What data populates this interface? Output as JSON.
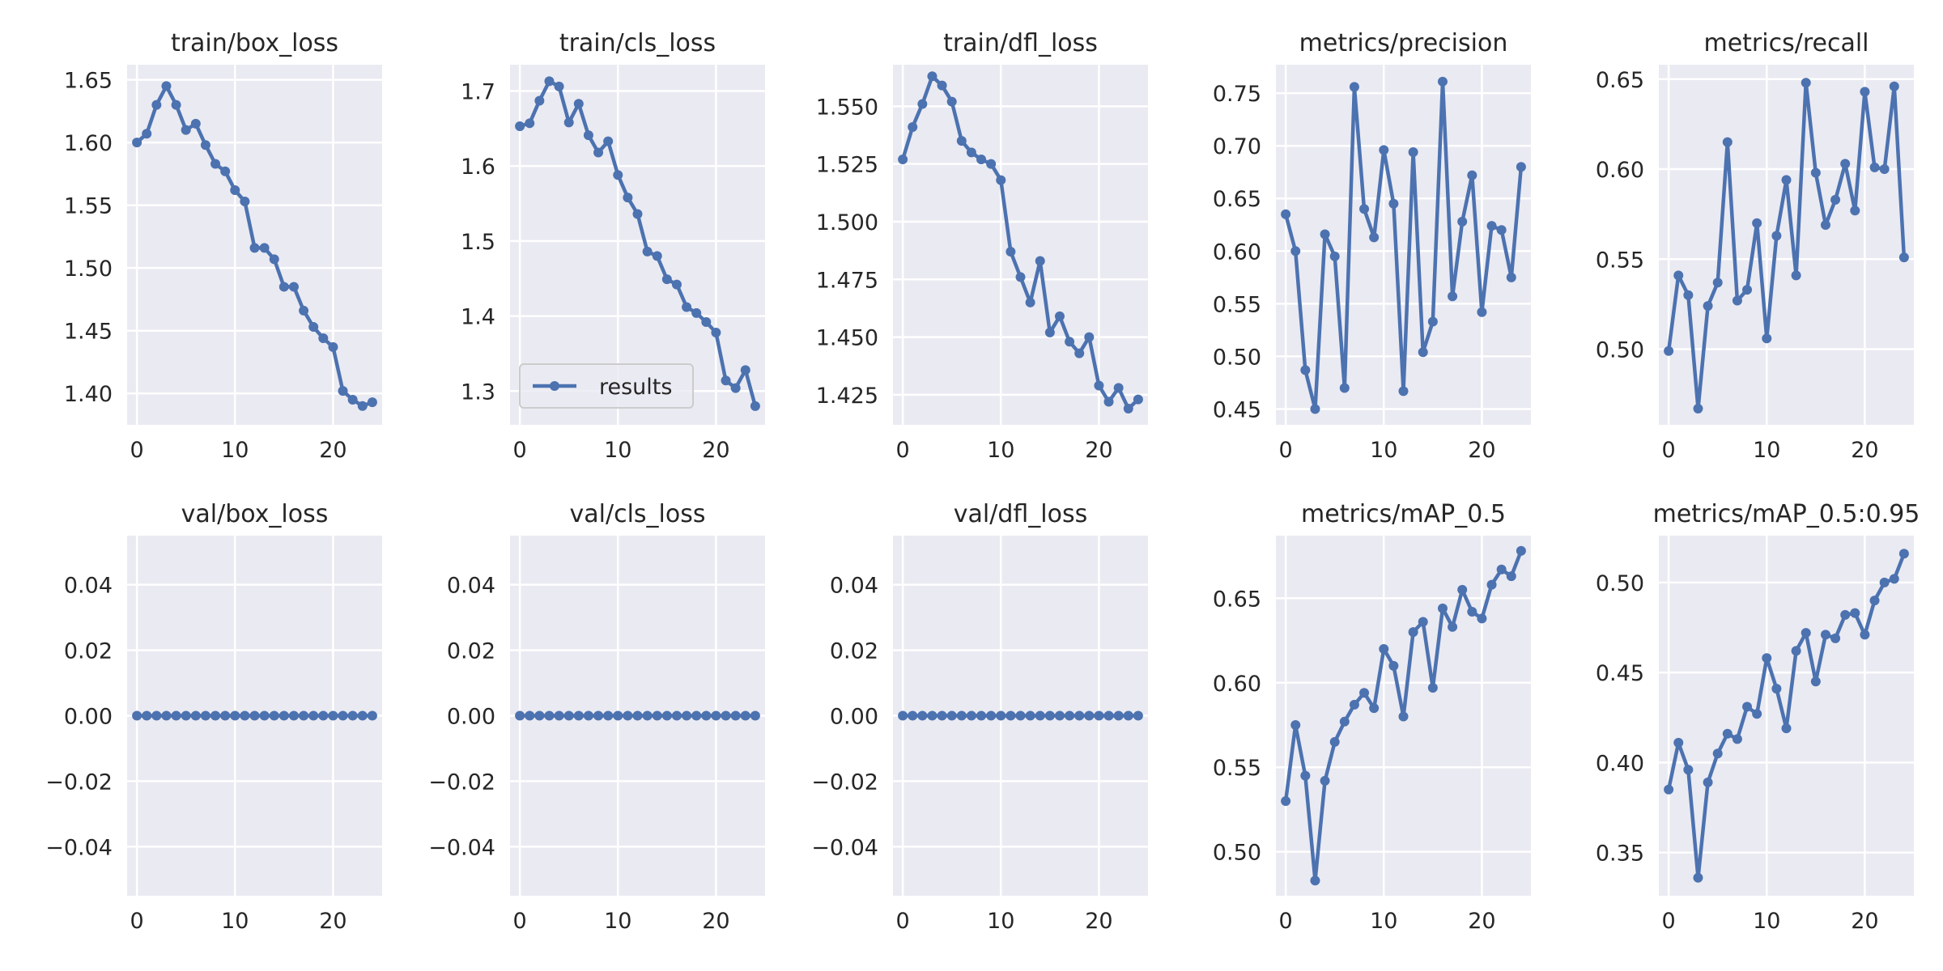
{
  "series_color": "#4c72b0",
  "background_color": "#eaeaf2",
  "grid_color": "#ffffff",
  "chart_data": [
    {
      "type": "line",
      "title": "train/box_loss",
      "xlim": [
        -1,
        25
      ],
      "ylim": [
        1.375,
        1.662
      ],
      "xticks": [
        0,
        10,
        20
      ],
      "yticks": [
        1.4,
        1.45,
        1.5,
        1.55,
        1.6,
        1.65
      ],
      "grid": true,
      "series": [
        {
          "name": "results",
          "x": [
            0,
            1,
            2,
            3,
            4,
            5,
            6,
            7,
            8,
            9,
            10,
            11,
            12,
            13,
            14,
            15,
            16,
            17,
            18,
            19,
            20,
            21,
            22,
            23,
            24
          ],
          "y": [
            1.6,
            1.607,
            1.63,
            1.645,
            1.63,
            1.61,
            1.615,
            1.598,
            1.583,
            1.577,
            1.562,
            1.553,
            1.516,
            1.516,
            1.507,
            1.485,
            1.485,
            1.466,
            1.453,
            1.444,
            1.437,
            1.402,
            1.395,
            1.39,
            1.393
          ]
        }
      ]
    },
    {
      "type": "line",
      "title": "train/cls_loss",
      "xlim": [
        -1,
        25
      ],
      "ylim": [
        1.255,
        1.735
      ],
      "xticks": [
        0,
        10,
        20
      ],
      "yticks": [
        1.3,
        1.4,
        1.5,
        1.6,
        1.7
      ],
      "grid": true,
      "legend": "lower left",
      "series": [
        {
          "name": "results",
          "x": [
            0,
            1,
            2,
            3,
            4,
            5,
            6,
            7,
            8,
            9,
            10,
            11,
            12,
            13,
            14,
            15,
            16,
            17,
            18,
            19,
            20,
            21,
            22,
            23,
            24
          ],
          "y": [
            1.653,
            1.657,
            1.687,
            1.713,
            1.706,
            1.658,
            1.683,
            1.641,
            1.618,
            1.633,
            1.588,
            1.558,
            1.536,
            1.486,
            1.48,
            1.449,
            1.442,
            1.412,
            1.404,
            1.392,
            1.378,
            1.314,
            1.304,
            1.328,
            1.28
          ]
        }
      ]
    },
    {
      "type": "line",
      "title": "train/dfl_loss",
      "xlim": [
        -1,
        25
      ],
      "ylim": [
        1.412,
        1.568
      ],
      "xticks": [
        0,
        10,
        20
      ],
      "yticks": [
        1.425,
        1.45,
        1.475,
        1.5,
        1.525,
        1.55
      ],
      "grid": true,
      "series": [
        {
          "name": "results",
          "x": [
            0,
            1,
            2,
            3,
            4,
            5,
            6,
            7,
            8,
            9,
            10,
            11,
            12,
            13,
            14,
            15,
            16,
            17,
            18,
            19,
            20,
            21,
            22,
            23,
            24
          ],
          "y": [
            1.527,
            1.541,
            1.551,
            1.563,
            1.559,
            1.552,
            1.535,
            1.53,
            1.527,
            1.525,
            1.518,
            1.487,
            1.476,
            1.465,
            1.483,
            1.452,
            1.459,
            1.448,
            1.443,
            1.45,
            1.429,
            1.422,
            1.428,
            1.419,
            1.423
          ]
        }
      ]
    },
    {
      "type": "line",
      "title": "metrics/precision",
      "xlim": [
        -1,
        25
      ],
      "ylim": [
        0.435,
        0.777
      ],
      "xticks": [
        0,
        10,
        20
      ],
      "yticks": [
        0.45,
        0.5,
        0.55,
        0.6,
        0.65,
        0.7,
        0.75
      ],
      "grid": true,
      "series": [
        {
          "name": "results",
          "x": [
            0,
            1,
            2,
            3,
            4,
            5,
            6,
            7,
            8,
            9,
            10,
            11,
            12,
            13,
            14,
            15,
            16,
            17,
            18,
            19,
            20,
            21,
            22,
            23,
            24
          ],
          "y": [
            0.635,
            0.6,
            0.487,
            0.45,
            0.616,
            0.595,
            0.47,
            0.756,
            0.64,
            0.613,
            0.696,
            0.645,
            0.467,
            0.694,
            0.504,
            0.533,
            0.761,
            0.557,
            0.628,
            0.672,
            0.542,
            0.624,
            0.62,
            0.575,
            0.68
          ]
        }
      ]
    },
    {
      "type": "line",
      "title": "metrics/recall",
      "xlim": [
        -1,
        25
      ],
      "ylim": [
        0.458,
        0.658
      ],
      "xticks": [
        0,
        10,
        20
      ],
      "yticks": [
        0.5,
        0.55,
        0.6,
        0.65
      ],
      "grid": true,
      "series": [
        {
          "name": "results",
          "x": [
            0,
            1,
            2,
            3,
            4,
            5,
            6,
            7,
            8,
            9,
            10,
            11,
            12,
            13,
            14,
            15,
            16,
            17,
            18,
            19,
            20,
            21,
            22,
            23,
            24
          ],
          "y": [
            0.499,
            0.541,
            0.53,
            0.467,
            0.524,
            0.537,
            0.615,
            0.527,
            0.533,
            0.57,
            0.506,
            0.563,
            0.594,
            0.541,
            0.648,
            0.598,
            0.569,
            0.583,
            0.603,
            0.577,
            0.643,
            0.601,
            0.6,
            0.646,
            0.551
          ]
        }
      ]
    },
    {
      "type": "line",
      "title": "val/box_loss",
      "xlim": [
        -1,
        25
      ],
      "ylim": [
        -0.055,
        0.055
      ],
      "xticks": [
        0,
        10,
        20
      ],
      "yticks": [
        -0.04,
        -0.02,
        0.0,
        0.02,
        0.04
      ],
      "grid": true,
      "series": [
        {
          "name": "results",
          "x": [
            0,
            1,
            2,
            3,
            4,
            5,
            6,
            7,
            8,
            9,
            10,
            11,
            12,
            13,
            14,
            15,
            16,
            17,
            18,
            19,
            20,
            21,
            22,
            23,
            24
          ],
          "y": [
            0,
            0,
            0,
            0,
            0,
            0,
            0,
            0,
            0,
            0,
            0,
            0,
            0,
            0,
            0,
            0,
            0,
            0,
            0,
            0,
            0,
            0,
            0,
            0,
            0
          ]
        }
      ]
    },
    {
      "type": "line",
      "title": "val/cls_loss",
      "xlim": [
        -1,
        25
      ],
      "ylim": [
        -0.055,
        0.055
      ],
      "xticks": [
        0,
        10,
        20
      ],
      "yticks": [
        -0.04,
        -0.02,
        0.0,
        0.02,
        0.04
      ],
      "grid": true,
      "series": [
        {
          "name": "results",
          "x": [
            0,
            1,
            2,
            3,
            4,
            5,
            6,
            7,
            8,
            9,
            10,
            11,
            12,
            13,
            14,
            15,
            16,
            17,
            18,
            19,
            20,
            21,
            22,
            23,
            24
          ],
          "y": [
            0,
            0,
            0,
            0,
            0,
            0,
            0,
            0,
            0,
            0,
            0,
            0,
            0,
            0,
            0,
            0,
            0,
            0,
            0,
            0,
            0,
            0,
            0,
            0,
            0
          ]
        }
      ]
    },
    {
      "type": "line",
      "title": "val/dfl_loss",
      "xlim": [
        -1,
        25
      ],
      "ylim": [
        -0.055,
        0.055
      ],
      "xticks": [
        0,
        10,
        20
      ],
      "yticks": [
        -0.04,
        -0.02,
        0.0,
        0.02,
        0.04
      ],
      "grid": true,
      "series": [
        {
          "name": "results",
          "x": [
            0,
            1,
            2,
            3,
            4,
            5,
            6,
            7,
            8,
            9,
            10,
            11,
            12,
            13,
            14,
            15,
            16,
            17,
            18,
            19,
            20,
            21,
            22,
            23,
            24
          ],
          "y": [
            0,
            0,
            0,
            0,
            0,
            0,
            0,
            0,
            0,
            0,
            0,
            0,
            0,
            0,
            0,
            0,
            0,
            0,
            0,
            0,
            0,
            0,
            0,
            0,
            0
          ]
        }
      ]
    },
    {
      "type": "line",
      "title": "metrics/mAP_0.5",
      "xlim": [
        -1,
        25
      ],
      "ylim": [
        0.474,
        0.687
      ],
      "xticks": [
        0,
        10,
        20
      ],
      "yticks": [
        0.5,
        0.55,
        0.6,
        0.65
      ],
      "grid": true,
      "series": [
        {
          "name": "results",
          "x": [
            0,
            1,
            2,
            3,
            4,
            5,
            6,
            7,
            8,
            9,
            10,
            11,
            12,
            13,
            14,
            15,
            16,
            17,
            18,
            19,
            20,
            21,
            22,
            23,
            24
          ],
          "y": [
            0.53,
            0.575,
            0.545,
            0.483,
            0.542,
            0.565,
            0.577,
            0.587,
            0.594,
            0.585,
            0.62,
            0.61,
            0.58,
            0.63,
            0.636,
            0.597,
            0.644,
            0.633,
            0.655,
            0.642,
            0.638,
            0.658,
            0.667,
            0.663,
            0.678
          ]
        }
      ]
    },
    {
      "type": "line",
      "title": "metrics/mAP_0.5:0.95",
      "xlim": [
        -1,
        25
      ],
      "ylim": [
        0.326,
        0.526
      ],
      "xticks": [
        0,
        10,
        20
      ],
      "yticks": [
        0.35,
        0.4,
        0.45,
        0.5
      ],
      "grid": true,
      "series": [
        {
          "name": "results",
          "x": [
            0,
            1,
            2,
            3,
            4,
            5,
            6,
            7,
            8,
            9,
            10,
            11,
            12,
            13,
            14,
            15,
            16,
            17,
            18,
            19,
            20,
            21,
            22,
            23,
            24
          ],
          "y": [
            0.385,
            0.411,
            0.396,
            0.336,
            0.389,
            0.405,
            0.416,
            0.413,
            0.431,
            0.427,
            0.458,
            0.441,
            0.419,
            0.462,
            0.472,
            0.445,
            0.471,
            0.469,
            0.482,
            0.483,
            0.471,
            0.49,
            0.5,
            0.502,
            0.516
          ]
        }
      ]
    }
  ]
}
